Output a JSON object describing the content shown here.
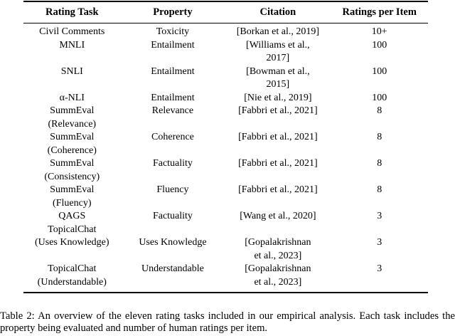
{
  "table": {
    "headers": {
      "task": "Rating Task",
      "property": "Property",
      "citation": "Citation",
      "ratings": "Ratings per Item"
    },
    "rows": [
      {
        "task": "Civil Comments",
        "property": "Toxicity",
        "citation": "[Borkan et al., 2019]",
        "ratings": "10+"
      },
      {
        "task": "MNLI",
        "property": "Entailment",
        "citation": "[Williams et al.,\n2017]",
        "ratings": "100"
      },
      {
        "task": "SNLI",
        "property": "Entailment",
        "citation": "[Bowman et al.,\n2015]",
        "ratings": "100"
      },
      {
        "task": "α-NLI",
        "property": "Entailment",
        "citation": "[Nie et al., 2019]",
        "ratings": "100"
      },
      {
        "task": "SummEval\n(Relevance)",
        "property": "Relevance",
        "citation": "[Fabbri et al., 2021]",
        "ratings": "8"
      },
      {
        "task": "SummEval\n(Coherence)",
        "property": "Coherence",
        "citation": "[Fabbri et al., 2021]",
        "ratings": "8"
      },
      {
        "task": "SummEval\n(Consistency)",
        "property": "Factuality",
        "citation": "[Fabbri et al., 2021]",
        "ratings": "8"
      },
      {
        "task": "SummEval\n(Fluency)",
        "property": "Fluency",
        "citation": "[Fabbri et al., 2021]",
        "ratings": "8"
      },
      {
        "task": "QAGS",
        "property": "Factuality",
        "citation": "[Wang et al., 2020]",
        "ratings": "3"
      },
      {
        "task": "TopicalChat\n(Uses Knowledge)",
        "property": "Uses Knowledge",
        "citation": "[Gopalakrishnan\net al., 2023]",
        "ratings": "3"
      },
      {
        "task": "TopicalChat\n(Understandable)",
        "property": "Understandable",
        "citation": "[Gopalakrishnan\net al., 2023]",
        "ratings": "3"
      }
    ]
  },
  "caption": "Table 2: An overview of the eleven rating tasks included in our empirical analysis. Each task includes the property being evaluated and number of human ratings per item."
}
